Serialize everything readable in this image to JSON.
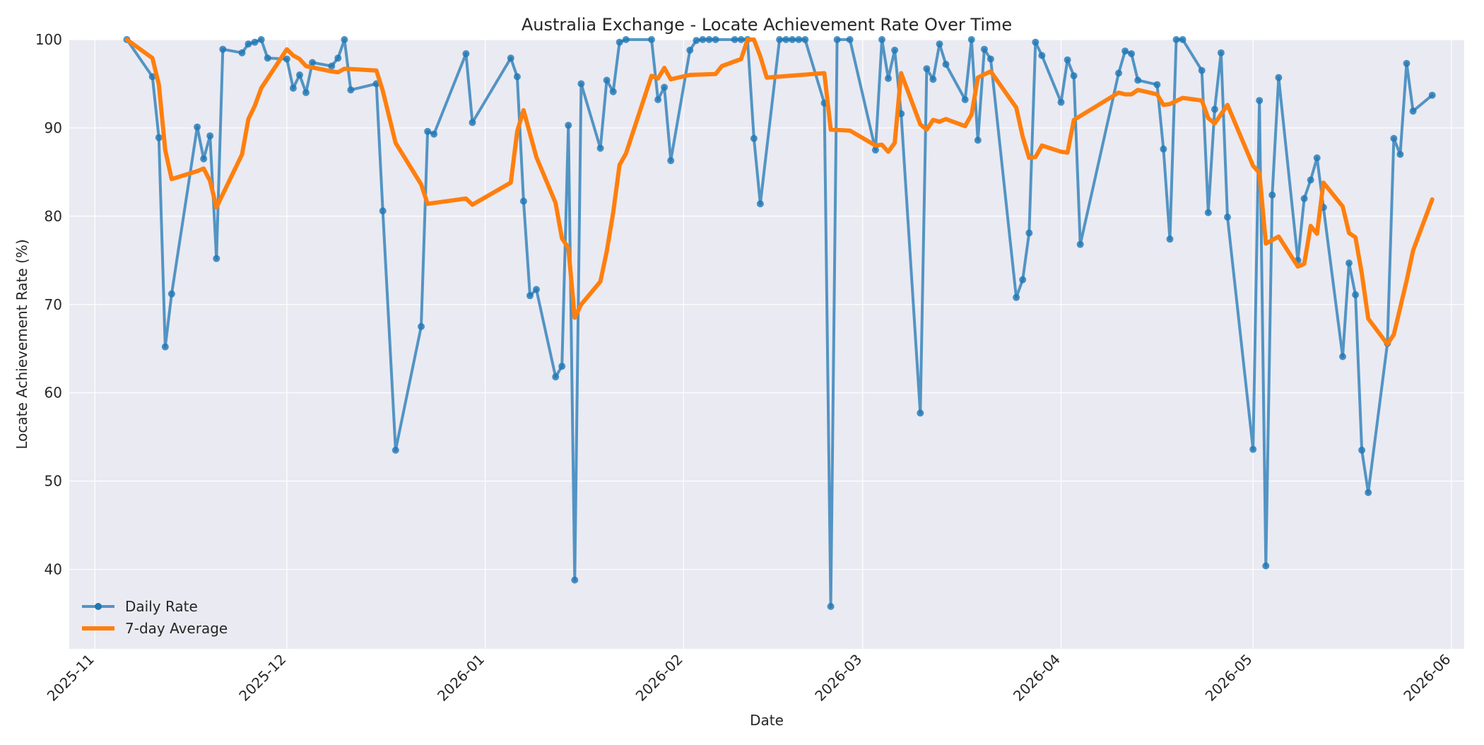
{
  "chart_data": {
    "type": "line",
    "title": "Australia Exchange - Locate Achievement Rate Over Time",
    "xlabel": "Date",
    "ylabel": "Locate Achievement Rate (%)",
    "x_range": [
      "2025-10-28",
      "2026-06-03"
    ],
    "ylim": [
      31,
      100
    ],
    "y_ticks": [
      40,
      50,
      60,
      70,
      80,
      90,
      100
    ],
    "x_ticks": [
      "2025-11",
      "2025-12",
      "2026-01",
      "2026-02",
      "2026-03",
      "2026-04",
      "2026-05",
      "2026-06"
    ],
    "grid": true,
    "legend_position": "lower-left",
    "colors": {
      "daily": "#1f77b4",
      "avg": "#ff7f0e",
      "plot_bg": "#eaeaf2",
      "grid": "#ffffff"
    },
    "series": [
      {
        "name": "Daily Rate",
        "marker": "circle",
        "points": [
          [
            "2025-11-06",
            100
          ],
          [
            "2025-11-10",
            95.8
          ],
          [
            "2025-11-11",
            88.9
          ],
          [
            "2025-11-12",
            65.2
          ],
          [
            "2025-11-13",
            71.2
          ],
          [
            "2025-11-17",
            90.1
          ],
          [
            "2025-11-18",
            86.5
          ],
          [
            "2025-11-19",
            89.1
          ],
          [
            "2025-11-20",
            75.2
          ],
          [
            "2025-11-21",
            98.9
          ],
          [
            "2025-11-24",
            98.5
          ],
          [
            "2025-11-25",
            99.5
          ],
          [
            "2025-11-26",
            99.7
          ],
          [
            "2025-11-27",
            100
          ],
          [
            "2025-11-28",
            97.9
          ],
          [
            "2025-12-01",
            97.8
          ],
          [
            "2025-12-02",
            94.5
          ],
          [
            "2025-12-03",
            96.0
          ],
          [
            "2025-12-04",
            94.0
          ],
          [
            "2025-12-05",
            97.4
          ],
          [
            "2025-12-08",
            97.0
          ],
          [
            "2025-12-09",
            97.9
          ],
          [
            "2025-12-10",
            100
          ],
          [
            "2025-12-11",
            94.3
          ],
          [
            "2025-12-15",
            95.0
          ],
          [
            "2025-12-16",
            80.6
          ],
          [
            "2025-12-18",
            53.5
          ],
          [
            "2025-12-22",
            67.5
          ],
          [
            "2025-12-23",
            89.6
          ],
          [
            "2025-12-24",
            89.3
          ],
          [
            "2025-12-29",
            98.4
          ],
          [
            "2025-12-30",
            90.6
          ],
          [
            "2026-01-05",
            97.9
          ],
          [
            "2026-01-06",
            95.8
          ],
          [
            "2026-01-07",
            81.7
          ],
          [
            "2026-01-08",
            71.0
          ],
          [
            "2026-01-09",
            71.7
          ],
          [
            "2026-01-12",
            61.8
          ],
          [
            "2026-01-13",
            63.0
          ],
          [
            "2026-01-14",
            90.3
          ],
          [
            "2026-01-15",
            38.8
          ],
          [
            "2026-01-16",
            95.0
          ],
          [
            "2026-01-19",
            87.7
          ],
          [
            "2026-01-20",
            95.4
          ],
          [
            "2026-01-21",
            94.1
          ],
          [
            "2026-01-22",
            99.7
          ],
          [
            "2026-01-23",
            100
          ],
          [
            "2026-01-27",
            100
          ],
          [
            "2026-01-28",
            93.2
          ],
          [
            "2026-01-29",
            94.6
          ],
          [
            "2026-01-30",
            86.3
          ],
          [
            "2026-02-02",
            98.8
          ],
          [
            "2026-02-03",
            99.9
          ],
          [
            "2026-02-04",
            100
          ],
          [
            "2026-02-05",
            100
          ],
          [
            "2026-02-06",
            100
          ],
          [
            "2026-02-09",
            100
          ],
          [
            "2026-02-10",
            100
          ],
          [
            "2026-02-11",
            100
          ],
          [
            "2026-02-12",
            88.8
          ],
          [
            "2026-02-13",
            81.4
          ],
          [
            "2026-02-16",
            100
          ],
          [
            "2026-02-17",
            100
          ],
          [
            "2026-02-18",
            100
          ],
          [
            "2026-02-19",
            100
          ],
          [
            "2026-02-20",
            100
          ],
          [
            "2026-02-23",
            92.8
          ],
          [
            "2026-02-24",
            35.8
          ],
          [
            "2026-02-25",
            100
          ],
          [
            "2026-02-27",
            100
          ],
          [
            "2026-03-03",
            87.5
          ],
          [
            "2026-03-04",
            100
          ],
          [
            "2026-03-05",
            95.6
          ],
          [
            "2026-03-06",
            98.8
          ],
          [
            "2026-03-07",
            91.6
          ],
          [
            "2026-03-10",
            57.7
          ],
          [
            "2026-03-11",
            96.7
          ],
          [
            "2026-03-12",
            95.5
          ],
          [
            "2026-03-13",
            99.5
          ],
          [
            "2026-03-14",
            97.2
          ],
          [
            "2026-03-17",
            93.2
          ],
          [
            "2026-03-18",
            100
          ],
          [
            "2026-03-19",
            88.6
          ],
          [
            "2026-03-20",
            98.9
          ],
          [
            "2026-03-21",
            97.8
          ],
          [
            "2026-03-25",
            70.8
          ],
          [
            "2026-03-26",
            72.8
          ],
          [
            "2026-03-27",
            78.1
          ],
          [
            "2026-03-28",
            99.7
          ],
          [
            "2026-03-29",
            98.2
          ],
          [
            "2026-04-01",
            92.9
          ],
          [
            "2026-04-02",
            97.7
          ],
          [
            "2026-04-03",
            95.9
          ],
          [
            "2026-04-04",
            76.8
          ],
          [
            "2026-04-10",
            96.2
          ],
          [
            "2026-04-11",
            98.7
          ],
          [
            "2026-04-12",
            98.4
          ],
          [
            "2026-04-13",
            95.4
          ],
          [
            "2026-04-16",
            94.9
          ],
          [
            "2026-04-17",
            87.6
          ],
          [
            "2026-04-18",
            77.4
          ],
          [
            "2026-04-19",
            100
          ],
          [
            "2026-04-20",
            100
          ],
          [
            "2026-04-23",
            96.5
          ],
          [
            "2026-04-24",
            80.4
          ],
          [
            "2026-04-25",
            92.1
          ],
          [
            "2026-04-26",
            98.5
          ],
          [
            "2026-04-27",
            79.9
          ],
          [
            "2026-05-01",
            53.6
          ],
          [
            "2026-05-02",
            93.1
          ],
          [
            "2026-05-03",
            40.4
          ],
          [
            "2026-05-04",
            82.4
          ],
          [
            "2026-05-05",
            95.7
          ],
          [
            "2026-05-08",
            75.0
          ],
          [
            "2026-05-09",
            82.0
          ],
          [
            "2026-05-10",
            84.1
          ],
          [
            "2026-05-11",
            86.6
          ],
          [
            "2026-05-12",
            81.0
          ],
          [
            "2026-05-15",
            64.1
          ],
          [
            "2026-05-16",
            74.7
          ],
          [
            "2026-05-17",
            71.1
          ],
          [
            "2026-05-18",
            53.5
          ],
          [
            "2026-05-19",
            48.7
          ],
          [
            "2026-05-22",
            65.6
          ],
          [
            "2026-05-23",
            88.8
          ],
          [
            "2026-05-24",
            87.0
          ],
          [
            "2026-05-25",
            97.3
          ],
          [
            "2026-05-26",
            91.9
          ],
          [
            "2026-05-29",
            93.7
          ]
        ]
      },
      {
        "name": "7-day Average",
        "marker": "none",
        "points": [
          [
            "2025-11-06",
            100
          ],
          [
            "2025-11-10",
            97.9
          ],
          [
            "2025-11-11",
            94.9
          ],
          [
            "2025-11-12",
            87.5
          ],
          [
            "2025-11-13",
            84.2
          ],
          [
            "2025-11-17",
            85.1
          ],
          [
            "2025-11-18",
            85.4
          ],
          [
            "2025-11-19",
            84.0
          ],
          [
            "2025-11-20",
            81.0
          ],
          [
            "2025-11-24",
            87.0
          ],
          [
            "2025-11-25",
            91.0
          ],
          [
            "2025-11-26",
            92.5
          ],
          [
            "2025-11-27",
            94.5
          ],
          [
            "2025-12-01",
            98.9
          ],
          [
            "2025-12-02",
            98.2
          ],
          [
            "2025-12-03",
            97.8
          ],
          [
            "2025-12-04",
            97.0
          ],
          [
            "2025-12-08",
            96.4
          ],
          [
            "2025-12-09",
            96.3
          ],
          [
            "2025-12-10",
            96.7
          ],
          [
            "2025-12-15",
            96.5
          ],
          [
            "2025-12-16",
            94.2
          ],
          [
            "2025-12-18",
            88.3
          ],
          [
            "2025-12-22",
            83.6
          ],
          [
            "2025-12-23",
            81.4
          ],
          [
            "2025-12-29",
            82.0
          ],
          [
            "2025-12-30",
            81.3
          ],
          [
            "2026-01-05",
            83.8
          ],
          [
            "2026-01-06",
            89.6
          ],
          [
            "2026-01-07",
            92.0
          ],
          [
            "2026-01-09",
            86.7
          ],
          [
            "2026-01-12",
            81.5
          ],
          [
            "2026-01-13",
            77.5
          ],
          [
            "2026-01-14",
            76.4
          ],
          [
            "2026-01-15",
            68.5
          ],
          [
            "2026-01-16",
            70.0
          ],
          [
            "2026-01-19",
            72.6
          ],
          [
            "2026-01-20",
            76.0
          ],
          [
            "2026-01-21",
            80.4
          ],
          [
            "2026-01-22",
            85.8
          ],
          [
            "2026-01-23",
            87.1
          ],
          [
            "2026-01-27",
            95.9
          ],
          [
            "2026-01-28",
            95.6
          ],
          [
            "2026-01-29",
            96.8
          ],
          [
            "2026-01-30",
            95.5
          ],
          [
            "2026-02-02",
            96.0
          ],
          [
            "2026-02-06",
            96.1
          ],
          [
            "2026-02-07",
            97.0
          ],
          [
            "2026-02-10",
            97.8
          ],
          [
            "2026-02-11",
            100
          ],
          [
            "2026-02-12",
            100
          ],
          [
            "2026-02-13",
            98.1
          ],
          [
            "2026-02-14",
            95.7
          ],
          [
            "2026-02-23",
            96.2
          ],
          [
            "2026-02-24",
            89.8
          ],
          [
            "2026-02-27",
            89.7
          ],
          [
            "2026-03-03",
            88.0
          ],
          [
            "2026-03-04",
            88.1
          ],
          [
            "2026-03-05",
            87.3
          ],
          [
            "2026-03-06",
            88.3
          ],
          [
            "2026-03-07",
            96.2
          ],
          [
            "2026-03-10",
            90.4
          ],
          [
            "2026-03-11",
            89.8
          ],
          [
            "2026-03-12",
            90.9
          ],
          [
            "2026-03-13",
            90.7
          ],
          [
            "2026-03-14",
            91.0
          ],
          [
            "2026-03-17",
            90.2
          ],
          [
            "2026-03-18",
            91.5
          ],
          [
            "2026-03-19",
            95.7
          ],
          [
            "2026-03-21",
            96.4
          ],
          [
            "2026-03-25",
            92.3
          ],
          [
            "2026-03-26",
            89.0
          ],
          [
            "2026-03-27",
            86.6
          ],
          [
            "2026-03-28",
            86.7
          ],
          [
            "2026-03-29",
            88.0
          ],
          [
            "2026-04-01",
            87.3
          ],
          [
            "2026-04-02",
            87.2
          ],
          [
            "2026-04-03",
            90.9
          ],
          [
            "2026-04-10",
            94.0
          ],
          [
            "2026-04-11",
            93.8
          ],
          [
            "2026-04-12",
            93.8
          ],
          [
            "2026-04-13",
            94.3
          ],
          [
            "2026-04-16",
            93.8
          ],
          [
            "2026-04-17",
            92.6
          ],
          [
            "2026-04-18",
            92.7
          ],
          [
            "2026-04-20",
            93.4
          ],
          [
            "2026-04-23",
            93.1
          ],
          [
            "2026-04-24",
            91.1
          ],
          [
            "2026-04-25",
            90.5
          ],
          [
            "2026-04-27",
            92.6
          ],
          [
            "2026-05-01",
            85.7
          ],
          [
            "2026-05-02",
            84.9
          ],
          [
            "2026-05-03",
            76.9
          ],
          [
            "2026-05-05",
            77.7
          ],
          [
            "2026-05-08",
            74.3
          ],
          [
            "2026-05-09",
            74.6
          ],
          [
            "2026-05-10",
            78.9
          ],
          [
            "2026-05-11",
            78.0
          ],
          [
            "2026-05-12",
            83.8
          ],
          [
            "2026-05-15",
            81.1
          ],
          [
            "2026-05-16",
            78.1
          ],
          [
            "2026-05-17",
            77.6
          ],
          [
            "2026-05-18",
            73.5
          ],
          [
            "2026-05-19",
            68.4
          ],
          [
            "2026-05-22",
            65.5
          ],
          [
            "2026-05-23",
            66.6
          ],
          [
            "2026-05-25",
            72.7
          ],
          [
            "2026-05-26",
            76.1
          ],
          [
            "2026-05-29",
            81.9
          ]
        ]
      }
    ]
  }
}
